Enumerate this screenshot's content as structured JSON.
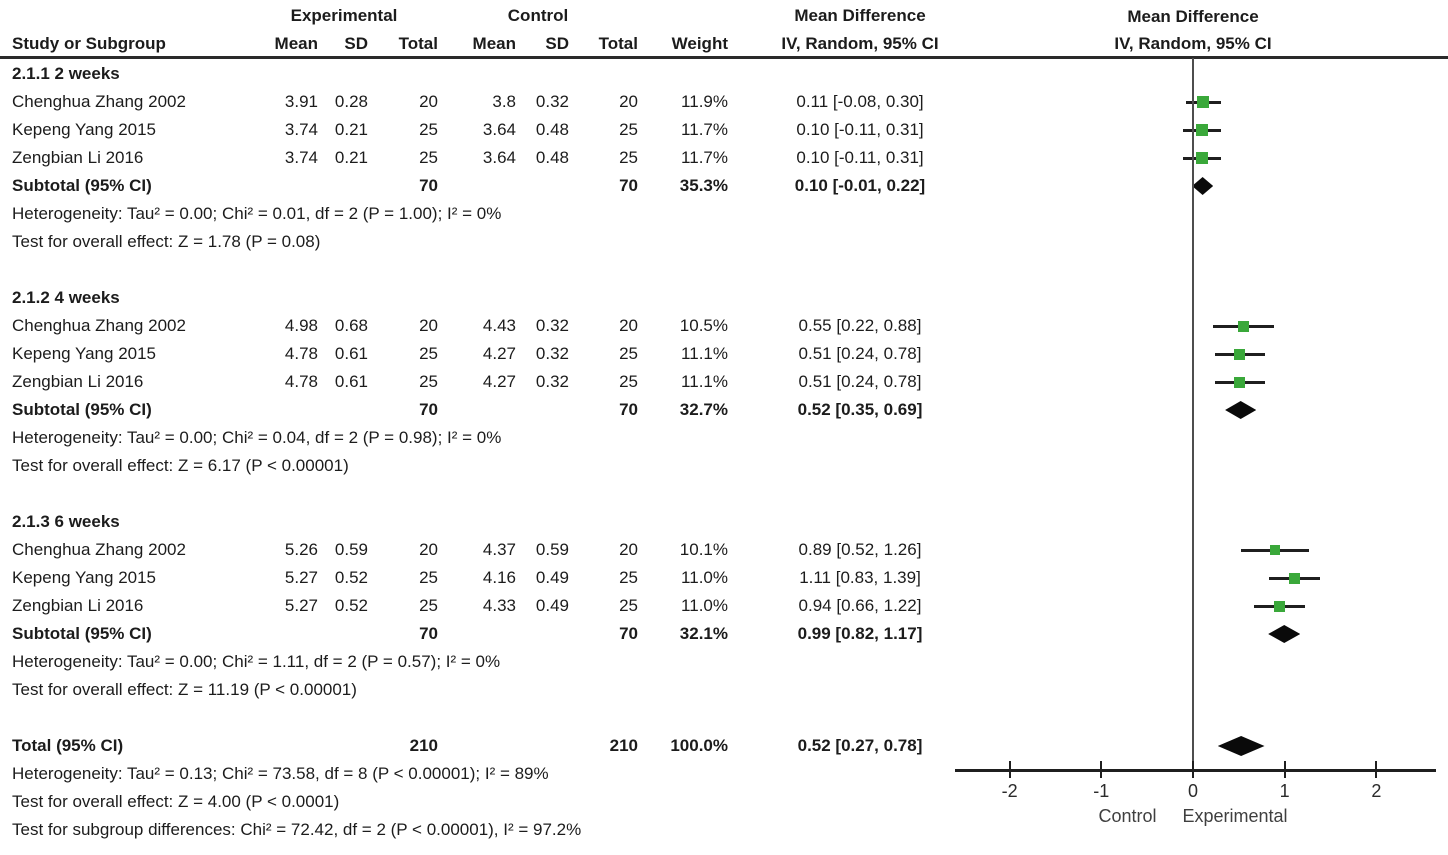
{
  "colors": {
    "marker_green": "#3aa83a",
    "diamond_black": "#0a0a0a",
    "ci_line": "#1f1f1f",
    "text": "#1c1c1c",
    "axis": "#1f1f1f",
    "zero_line": "#4d4d4d",
    "favours_gray": "#3f3f3f"
  },
  "header": {
    "study_col": "Study or Subgroup",
    "experimental_group": "Experimental",
    "control_group": "Control",
    "mean": "Mean",
    "sd": "SD",
    "total": "Total",
    "weight": "Weight",
    "md_col_title": "Mean Difference",
    "md_col_subtitle": "IV, Random, 95% CI",
    "plot_title": "Mean Difference",
    "plot_subtitle": "IV, Random, 95% CI"
  },
  "footer": {
    "lines": [
      "Heterogeneity: Tau² = 0.13; Chi² = 73.58, df = 8 (P < 0.00001); I² = 89%",
      "Test for overall effect: Z = 4.00 (P < 0.0001)",
      "Test for subgroup differences: Chi² = 72.42, df = 2 (P < 0.00001), I² = 97.2%"
    ]
  },
  "chart_data": {
    "type": "forest",
    "effect_measure": "Mean Difference, IV, Random, 95% CI",
    "x_ticks": [
      -2,
      -1,
      0,
      1,
      2
    ],
    "x_range": [
      -2.6,
      2.65
    ],
    "favours_left": "Control",
    "favours_right": "Experimental",
    "groups": [
      {
        "title": "2.1.1 2 weeks",
        "studies": [
          {
            "name": "Chenghua Zhang 2002",
            "e_mean": "3.91",
            "e_sd": "0.28",
            "e_total": "20",
            "c_mean": "3.8",
            "c_sd": "0.32",
            "c_total": "20",
            "weight": "11.9%",
            "w": 11.9,
            "ci_text": "0.11 [-0.08, 0.30]",
            "est": 0.11,
            "lo": -0.08,
            "hi": 0.3
          },
          {
            "name": "Kepeng Yang 2015",
            "e_mean": "3.74",
            "e_sd": "0.21",
            "e_total": "25",
            "c_mean": "3.64",
            "c_sd": "0.48",
            "c_total": "25",
            "weight": "11.7%",
            "w": 11.7,
            "ci_text": "0.10 [-0.11, 0.31]",
            "est": 0.1,
            "lo": -0.11,
            "hi": 0.31
          },
          {
            "name": "Zengbian Li 2016",
            "e_mean": "3.74",
            "e_sd": "0.21",
            "e_total": "25",
            "c_mean": "3.64",
            "c_sd": "0.48",
            "c_total": "25",
            "weight": "11.7%",
            "w": 11.7,
            "ci_text": "0.10 [-0.11, 0.31]",
            "est": 0.1,
            "lo": -0.11,
            "hi": 0.31
          }
        ],
        "subtotal": {
          "label": "Subtotal (95% CI)",
          "e_total": "70",
          "c_total": "70",
          "weight": "35.3%",
          "ci_text": "0.10 [-0.01, 0.22]",
          "est": 0.1,
          "lo": -0.01,
          "hi": 0.22
        },
        "heterogeneity": "Heterogeneity: Tau² = 0.00; Chi² = 0.01, df = 2 (P = 1.00); I² = 0%",
        "overall_test": "Test for overall effect: Z = 1.78 (P = 0.08)"
      },
      {
        "title": "2.1.2 4 weeks",
        "studies": [
          {
            "name": "Chenghua Zhang 2002",
            "e_mean": "4.98",
            "e_sd": "0.68",
            "e_total": "20",
            "c_mean": "4.43",
            "c_sd": "0.32",
            "c_total": "20",
            "weight": "10.5%",
            "w": 10.5,
            "ci_text": "0.55 [0.22, 0.88]",
            "est": 0.55,
            "lo": 0.22,
            "hi": 0.88
          },
          {
            "name": "Kepeng Yang 2015",
            "e_mean": "4.78",
            "e_sd": "0.61",
            "e_total": "25",
            "c_mean": "4.27",
            "c_sd": "0.32",
            "c_total": "25",
            "weight": "11.1%",
            "w": 11.1,
            "ci_text": "0.51 [0.24, 0.78]",
            "est": 0.51,
            "lo": 0.24,
            "hi": 0.78
          },
          {
            "name": "Zengbian Li 2016",
            "e_mean": "4.78",
            "e_sd": "0.61",
            "e_total": "25",
            "c_mean": "4.27",
            "c_sd": "0.32",
            "c_total": "25",
            "weight": "11.1%",
            "w": 11.1,
            "ci_text": "0.51 [0.24, 0.78]",
            "est": 0.51,
            "lo": 0.24,
            "hi": 0.78
          }
        ],
        "subtotal": {
          "label": "Subtotal (95% CI)",
          "e_total": "70",
          "c_total": "70",
          "weight": "32.7%",
          "ci_text": "0.52 [0.35, 0.69]",
          "est": 0.52,
          "lo": 0.35,
          "hi": 0.69
        },
        "heterogeneity": "Heterogeneity: Tau² = 0.00; Chi² = 0.04, df = 2 (P = 0.98); I² = 0%",
        "overall_test": "Test for overall effect: Z = 6.17 (P < 0.00001)"
      },
      {
        "title": "2.1.3 6 weeks",
        "studies": [
          {
            "name": "Chenghua Zhang 2002",
            "e_mean": "5.26",
            "e_sd": "0.59",
            "e_total": "20",
            "c_mean": "4.37",
            "c_sd": "0.59",
            "c_total": "20",
            "weight": "10.1%",
            "w": 10.1,
            "ci_text": "0.89 [0.52, 1.26]",
            "est": 0.89,
            "lo": 0.52,
            "hi": 1.26
          },
          {
            "name": "Kepeng Yang 2015",
            "e_mean": "5.27",
            "e_sd": "0.52",
            "e_total": "25",
            "c_mean": "4.16",
            "c_sd": "0.49",
            "c_total": "25",
            "weight": "11.0%",
            "w": 11.0,
            "ci_text": "1.11 [0.83, 1.39]",
            "est": 1.11,
            "lo": 0.83,
            "hi": 1.39
          },
          {
            "name": "Zengbian Li 2016",
            "e_mean": "5.27",
            "e_sd": "0.52",
            "e_total": "25",
            "c_mean": "4.33",
            "c_sd": "0.49",
            "c_total": "25",
            "weight": "11.0%",
            "w": 11.0,
            "ci_text": "0.94 [0.66, 1.22]",
            "est": 0.94,
            "lo": 0.66,
            "hi": 1.22
          }
        ],
        "subtotal": {
          "label": "Subtotal (95% CI)",
          "e_total": "70",
          "c_total": "70",
          "weight": "32.1%",
          "ci_text": "0.99 [0.82, 1.17]",
          "est": 0.99,
          "lo": 0.82,
          "hi": 1.17
        },
        "heterogeneity": "Heterogeneity: Tau² = 0.00; Chi² = 1.11, df = 2 (P = 0.57); I² = 0%",
        "overall_test": "Test for overall effect: Z = 11.19 (P < 0.00001)"
      }
    ],
    "total": {
      "label": "Total (95% CI)",
      "e_total": "210",
      "c_total": "210",
      "weight": "100.0%",
      "ci_text": "0.52 [0.27, 0.78]",
      "est": 0.52,
      "lo": 0.27,
      "hi": 0.78
    }
  }
}
